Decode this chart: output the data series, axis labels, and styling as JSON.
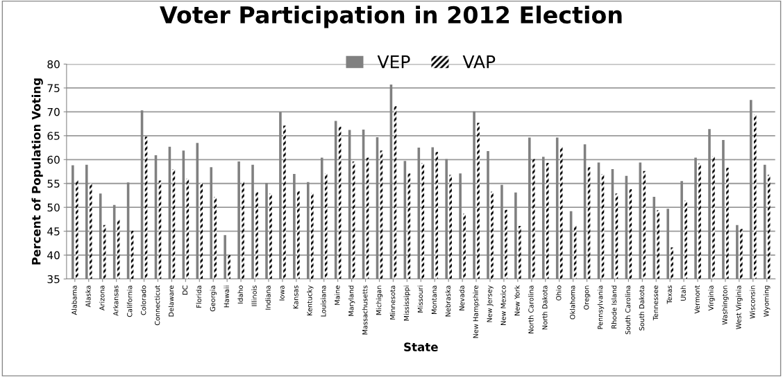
{
  "chart_data": {
    "type": "bar",
    "title": "Voter Participation in 2012 Election",
    "xlabel": "State",
    "ylabel": "Percent of Population Voting",
    "categories": [
      "Alabama",
      "Alaska",
      "Arizona",
      "Arkansas",
      "California",
      "Colorado",
      "Connecticut",
      "Delaware",
      "DC",
      "Florida",
      "Georgia",
      "Hawaii",
      "Idaho",
      "Illinois",
      "Indiana",
      "Iowa",
      "Kansas",
      "Kentucky",
      "Louisiana",
      "Maine",
      "Maryland",
      "Massachusetts",
      "Michigan",
      "Minnesota",
      "Mississippi",
      "Missouri",
      "Montana",
      "Nebraska",
      "Nevada",
      "New Hampshire",
      "New Jersey",
      "New Mexico",
      "New York",
      "North Carolina",
      "North Dakota",
      "Ohio",
      "Oklahoma",
      "Oregon",
      "Pennsylvania",
      "Rhode Island",
      "South Carolina",
      "South Dakota",
      "Tennessee",
      "Texas",
      "Utah",
      "Vermont",
      "Virginia",
      "Washington",
      "West Virginia",
      "Wisconsin",
      "Wyoming"
    ],
    "series": [
      {
        "name": "VEP",
        "color": "#808080",
        "values": [
          58.8,
          58.9,
          52.9,
          50.5,
          55.2,
          70.3,
          60.9,
          62.7,
          61.9,
          63.5,
          58.4,
          44.2,
          59.6,
          58.9,
          55.1,
          70.0,
          57.0,
          55.3,
          60.4,
          68.1,
          66.2,
          66.3,
          64.7,
          75.7,
          59.7,
          62.5,
          62.6,
          60.1,
          57.1,
          70.1,
          61.8,
          54.7,
          53.1,
          64.6,
          60.6,
          64.6,
          49.2,
          63.2,
          59.4,
          58.0,
          56.6,
          59.4,
          52.2,
          49.7,
          55.5,
          60.4,
          66.4,
          64.1,
          46.3,
          72.5,
          58.9
        ]
      },
      {
        "name": "VAP",
        "color": "#000000",
        "values": [
          55.7,
          55.0,
          46.3,
          47.4,
          45.1,
          64.8,
          55.6,
          58.0,
          56.0,
          55.1,
          52.2,
          40.0,
          55.4,
          53.2,
          52.9,
          67.1,
          53.4,
          53.0,
          57.1,
          66.9,
          59.6,
          60.4,
          61.9,
          71.2,
          57.1,
          59.3,
          61.6,
          56.8,
          48.7,
          67.7,
          53.3,
          49.5,
          46.1,
          60.1,
          59.3,
          62.7,
          46.2,
          58.4,
          57.0,
          52.9,
          53.8,
          57.6,
          49.4,
          41.6,
          51.4,
          59.2,
          60.7,
          58.3,
          45.5,
          69.4,
          56.8
        ]
      }
    ],
    "ylim": [
      35,
      80
    ],
    "yticks": [
      35,
      40,
      45,
      50,
      55,
      60,
      65,
      70,
      75,
      80
    ],
    "grid": "y",
    "legend": "top"
  }
}
